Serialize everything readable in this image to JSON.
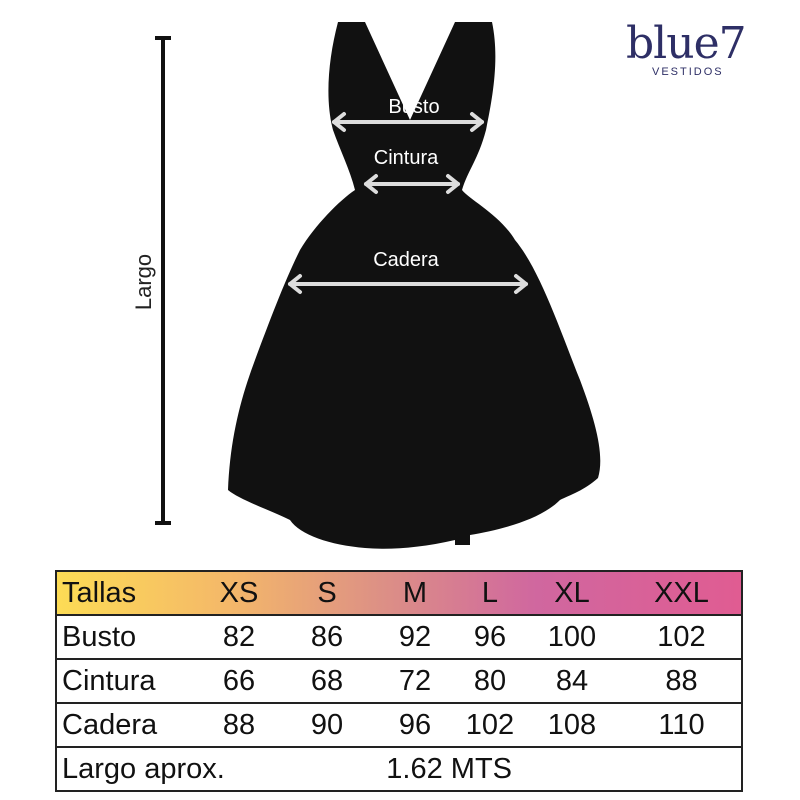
{
  "logo": {
    "brand": "blue7",
    "sub": "VESTIDOS",
    "color": "#2e2f66"
  },
  "diagram": {
    "measurements": {
      "bust": "Busto",
      "waist": "Cintura",
      "hip": "Cadera",
      "length": "Largo"
    }
  },
  "size_table": {
    "header": [
      "Tallas",
      "XS",
      "S",
      "M",
      "L",
      "XL",
      "XXL"
    ],
    "rows": [
      [
        "Busto",
        "82",
        "86",
        "92",
        "96",
        "100",
        "102"
      ],
      [
        "Cintura",
        "66",
        "68",
        "72",
        "80",
        "84",
        "88"
      ],
      [
        "Cadera",
        "88",
        "90",
        "96",
        "102",
        "108",
        "110"
      ]
    ],
    "length_label": "Largo aprox.",
    "length_value": "1.62 MTS",
    "header_gradient": [
      "#fddc55",
      "#e05c92"
    ]
  }
}
